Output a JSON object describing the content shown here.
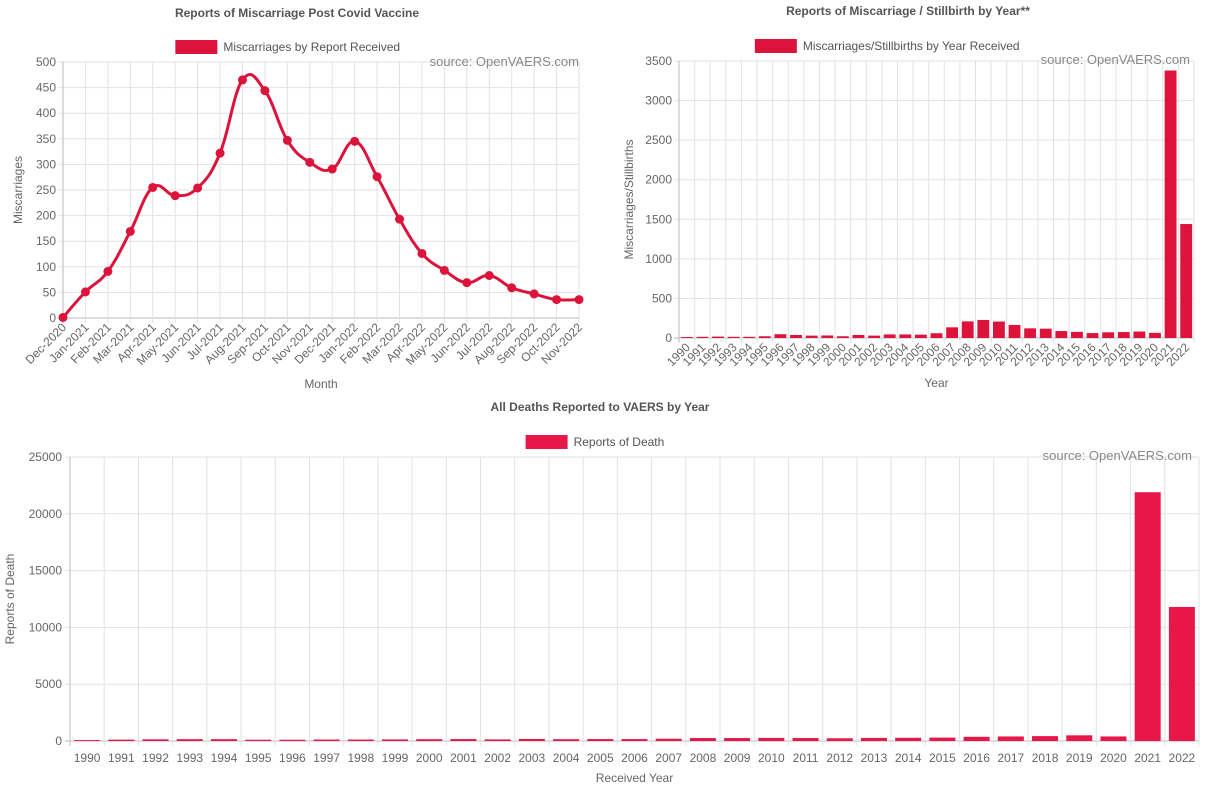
{
  "chart_data": [
    {
      "type": "line",
      "title": "Reports of Miscarriage Post Covid Vaccine",
      "legend": "Miscarriages by Report Received",
      "source": "source: OpenVAERS.com",
      "xlabel": "Month",
      "ylabel": "Miscarriages",
      "ylim": [
        0,
        500
      ],
      "yticks": [
        0,
        50,
        100,
        150,
        200,
        250,
        300,
        350,
        400,
        450,
        500
      ],
      "color": "#dc143c",
      "categories": [
        "Dec-2020",
        "Jan-2021",
        "Feb-2021",
        "Mar-2021",
        "Apr-2021",
        "May-2021",
        "Jun-2021",
        "Jul-2021",
        "Aug-2021",
        "Sep-2021",
        "Oct-2021",
        "Nov-2021",
        "Dec-2021",
        "Jan-2022",
        "Feb-2022",
        "Mar-2022",
        "Apr-2022",
        "May-2022",
        "Jun-2022",
        "Jul-2022",
        "Aug-2022",
        "Sep-2022",
        "Oct-2022",
        "Nov-2022"
      ],
      "values": [
        1,
        51,
        91,
        169,
        255,
        239,
        254,
        322,
        465,
        444,
        347,
        304,
        291,
        345,
        276,
        193,
        126,
        93,
        69,
        83,
        59,
        47,
        36,
        36
      ]
    },
    {
      "type": "bar",
      "title": "Reports of Miscarriage / Stillbirth by Year**",
      "legend": "Miscarriages/Stillbirths by Year Received",
      "source": "source: OpenVAERS.com",
      "xlabel": "Year",
      "ylabel": "Miscarriages/Stillbirths",
      "ylim": [
        0,
        3500
      ],
      "yticks": [
        0,
        500,
        1000,
        1500,
        2000,
        2500,
        3000,
        3500
      ],
      "color": "#dc143c",
      "categories": [
        "1990",
        "1991",
        "1992",
        "1993",
        "1994",
        "1995",
        "1996",
        "1997",
        "1998",
        "1999",
        "2000",
        "2001",
        "2002",
        "2003",
        "2004",
        "2005",
        "2006",
        "2007",
        "2008",
        "2009",
        "2010",
        "2011",
        "2012",
        "2013",
        "2014",
        "2015",
        "2016",
        "2017",
        "2018",
        "2019",
        "2020",
        "2021",
        "2022"
      ],
      "values": [
        12,
        15,
        18,
        15,
        15,
        22,
        48,
        38,
        30,
        32,
        22,
        38,
        30,
        45,
        45,
        42,
        60,
        135,
        210,
        228,
        208,
        165,
        122,
        118,
        88,
        78,
        62,
        72,
        75,
        82,
        65,
        3380,
        1440
      ]
    },
    {
      "type": "bar",
      "title": "All Deaths Reported to VAERS by Year",
      "legend": "Reports of Death",
      "source": "source: OpenVAERS.com",
      "xlabel": "Received Year",
      "ylabel": "Reports of Death",
      "ylim": [
        0,
        25000
      ],
      "yticks": [
        0,
        5000,
        10000,
        15000,
        20000,
        25000
      ],
      "color": "#e8174a",
      "categories": [
        "1990",
        "1991",
        "1992",
        "1993",
        "1994",
        "1995",
        "1996",
        "1997",
        "1998",
        "1999",
        "2000",
        "2001",
        "2002",
        "2003",
        "2004",
        "2005",
        "2006",
        "2007",
        "2008",
        "2009",
        "2010",
        "2011",
        "2012",
        "2013",
        "2014",
        "2015",
        "2016",
        "2017",
        "2018",
        "2019",
        "2020",
        "2021",
        "2022"
      ],
      "values": [
        80,
        120,
        150,
        160,
        160,
        110,
        110,
        130,
        130,
        140,
        160,
        170,
        140,
        180,
        160,
        170,
        170,
        200,
        260,
        260,
        270,
        260,
        240,
        270,
        280,
        300,
        370,
        400,
        430,
        500,
        400,
        21900,
        11800
      ]
    }
  ]
}
